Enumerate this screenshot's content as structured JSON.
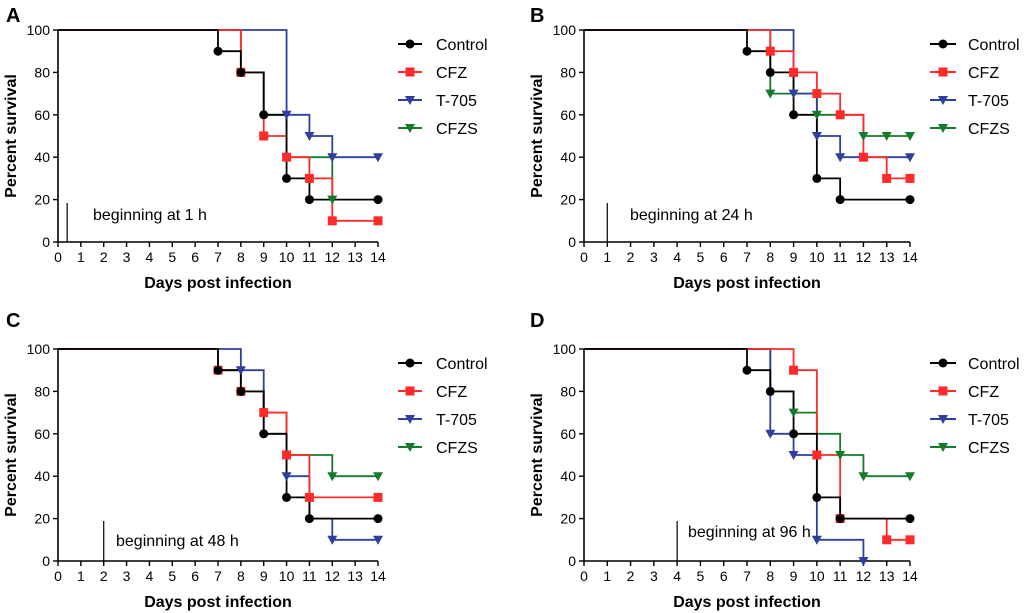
{
  "chart_data": [
    {
      "type": "line",
      "subtype": "survival-step",
      "panel": "A",
      "xlabel": "Days post infection",
      "ylabel": "Percent survival",
      "xlim": [
        0,
        14
      ],
      "ylim": [
        0,
        100
      ],
      "xticks": [
        0,
        1,
        2,
        3,
        4,
        5,
        6,
        7,
        8,
        9,
        10,
        11,
        12,
        13,
        14
      ],
      "yticks": [
        0,
        20,
        40,
        60,
        80,
        100
      ],
      "annotation": {
        "text": "beginning at 1 h",
        "x": 0.4
      },
      "legend_position": "right",
      "series": [
        {
          "name": "Control",
          "color": "#000000",
          "marker": "circle",
          "steps": [
            [
              0,
              100
            ],
            [
              7,
              90
            ],
            [
              8,
              80
            ],
            [
              9,
              60
            ],
            [
              10,
              30
            ],
            [
              11,
              20
            ],
            [
              14,
              20
            ]
          ],
          "points": [
            [
              7,
              90
            ],
            [
              8,
              80
            ],
            [
              9,
              60
            ],
            [
              10,
              30
            ],
            [
              11,
              20
            ],
            [
              14,
              20
            ]
          ]
        },
        {
          "name": "CFZ",
          "color": "#ff2a2a",
          "marker": "square",
          "steps": [
            [
              0,
              100
            ],
            [
              8,
              80
            ],
            [
              9,
              50
            ],
            [
              10,
              40
            ],
            [
              11,
              30
            ],
            [
              12,
              10
            ],
            [
              14,
              10
            ]
          ],
          "points": [
            [
              8,
              80
            ],
            [
              9,
              50
            ],
            [
              10,
              40
            ],
            [
              11,
              30
            ],
            [
              12,
              10
            ],
            [
              14,
              10
            ]
          ]
        },
        {
          "name": "T-705",
          "color": "#2e3f9e",
          "marker": "triangle-down",
          "steps": [
            [
              0,
              100
            ],
            [
              10,
              60
            ],
            [
              11,
              50
            ],
            [
              12,
              40
            ],
            [
              14,
              40
            ]
          ],
          "points": [
            [
              10,
              60
            ],
            [
              11,
              50
            ],
            [
              12,
              40
            ],
            [
              14,
              40
            ]
          ]
        },
        {
          "name": "CFZS",
          "color": "#157a2b",
          "marker": "triangle-down",
          "steps": [
            [
              0,
              100
            ],
            [
              8,
              80
            ],
            [
              9,
              60
            ],
            [
              10,
              40
            ],
            [
              12,
              20
            ]
          ],
          "points": [
            [
              12,
              20
            ]
          ]
        }
      ]
    },
    {
      "type": "line",
      "subtype": "survival-step",
      "panel": "B",
      "xlabel": "Days post infection",
      "ylabel": "Percent survival",
      "xlim": [
        0,
        14
      ],
      "ylim": [
        0,
        100
      ],
      "xticks": [
        0,
        1,
        2,
        3,
        4,
        5,
        6,
        7,
        8,
        9,
        10,
        11,
        12,
        13,
        14
      ],
      "yticks": [
        0,
        20,
        40,
        60,
        80,
        100
      ],
      "annotation": {
        "text": "beginning at 24 h",
        "x": 1
      },
      "legend_position": "right",
      "series": [
        {
          "name": "Control",
          "color": "#000000",
          "marker": "circle",
          "steps": [
            [
              0,
              100
            ],
            [
              7,
              90
            ],
            [
              8,
              80
            ],
            [
              9,
              60
            ],
            [
              10,
              30
            ],
            [
              11,
              20
            ],
            [
              14,
              20
            ]
          ],
          "points": [
            [
              7,
              90
            ],
            [
              8,
              80
            ],
            [
              9,
              60
            ],
            [
              10,
              30
            ],
            [
              11,
              20
            ],
            [
              14,
              20
            ]
          ]
        },
        {
          "name": "CFZ",
          "color": "#ff2a2a",
          "marker": "square",
          "steps": [
            [
              0,
              100
            ],
            [
              8,
              90
            ],
            [
              9,
              80
            ],
            [
              10,
              70
            ],
            [
              11,
              60
            ],
            [
              12,
              40
            ],
            [
              13,
              30
            ],
            [
              14,
              30
            ]
          ],
          "points": [
            [
              8,
              90
            ],
            [
              9,
              80
            ],
            [
              10,
              70
            ],
            [
              11,
              60
            ],
            [
              12,
              40
            ],
            [
              13,
              30
            ],
            [
              14,
              30
            ]
          ]
        },
        {
          "name": "T-705",
          "color": "#2e3f9e",
          "marker": "triangle-down",
          "steps": [
            [
              0,
              100
            ],
            [
              9,
              70
            ],
            [
              10,
              50
            ],
            [
              11,
              40
            ],
            [
              14,
              40
            ]
          ],
          "points": [
            [
              9,
              70
            ],
            [
              10,
              50
            ],
            [
              11,
              40
            ],
            [
              14,
              40
            ]
          ]
        },
        {
          "name": "CFZS",
          "color": "#157a2b",
          "marker": "triangle-down",
          "steps": [
            [
              0,
              100
            ],
            [
              8,
              70
            ],
            [
              10,
              60
            ],
            [
              12,
              50
            ],
            [
              14,
              50
            ]
          ],
          "points": [
            [
              8,
              70
            ],
            [
              10,
              60
            ],
            [
              12,
              50
            ],
            [
              13,
              50
            ],
            [
              14,
              50
            ]
          ]
        }
      ]
    },
    {
      "type": "line",
      "subtype": "survival-step",
      "panel": "C",
      "xlabel": "Days post infection",
      "ylabel": "Percent survival",
      "xlim": [
        0,
        14
      ],
      "ylim": [
        0,
        100
      ],
      "xticks": [
        0,
        1,
        2,
        3,
        4,
        5,
        6,
        7,
        8,
        9,
        10,
        11,
        12,
        13,
        14
      ],
      "yticks": [
        0,
        20,
        40,
        60,
        80,
        100
      ],
      "annotation": {
        "text": "beginning at 48 h",
        "x": 2
      },
      "legend_position": "right",
      "series": [
        {
          "name": "Control",
          "color": "#000000",
          "marker": "circle",
          "steps": [
            [
              0,
              100
            ],
            [
              7,
              90
            ],
            [
              8,
              80
            ],
            [
              9,
              60
            ],
            [
              10,
              30
            ],
            [
              11,
              20
            ],
            [
              14,
              20
            ]
          ],
          "points": [
            [
              7,
              90
            ],
            [
              8,
              80
            ],
            [
              9,
              60
            ],
            [
              10,
              30
            ],
            [
              11,
              20
            ],
            [
              14,
              20
            ]
          ]
        },
        {
          "name": "CFZ",
          "color": "#ff2a2a",
          "marker": "square",
          "steps": [
            [
              0,
              100
            ],
            [
              7,
              90
            ],
            [
              8,
              80
            ],
            [
              9,
              70
            ],
            [
              10,
              50
            ],
            [
              11,
              30
            ],
            [
              14,
              30
            ]
          ],
          "points": [
            [
              7,
              90
            ],
            [
              8,
              80
            ],
            [
              9,
              70
            ],
            [
              10,
              50
            ],
            [
              11,
              30
            ],
            [
              14,
              30
            ]
          ]
        },
        {
          "name": "T-705",
          "color": "#2e3f9e",
          "marker": "triangle-down",
          "steps": [
            [
              0,
              100
            ],
            [
              8,
              90
            ],
            [
              9,
              60
            ],
            [
              10,
              40
            ],
            [
              11,
              20
            ],
            [
              12,
              10
            ],
            [
              14,
              10
            ]
          ],
          "points": [
            [
              8,
              90
            ],
            [
              10,
              40
            ],
            [
              12,
              10
            ],
            [
              14,
              10
            ]
          ]
        },
        {
          "name": "CFZS",
          "color": "#157a2b",
          "marker": "triangle-down",
          "steps": [
            [
              0,
              100
            ],
            [
              7,
              90
            ],
            [
              8,
              80
            ],
            [
              9,
              70
            ],
            [
              10,
              50
            ],
            [
              12,
              40
            ],
            [
              14,
              40
            ]
          ],
          "points": [
            [
              12,
              40
            ],
            [
              14,
              40
            ]
          ]
        }
      ]
    },
    {
      "type": "line",
      "subtype": "survival-step",
      "panel": "D",
      "xlabel": "Days post infection",
      "ylabel": "Percent survival",
      "xlim": [
        0,
        14
      ],
      "ylim": [
        0,
        100
      ],
      "xticks": [
        0,
        1,
        2,
        3,
        4,
        5,
        6,
        7,
        8,
        9,
        10,
        11,
        12,
        13,
        14
      ],
      "yticks": [
        0,
        20,
        40,
        60,
        80,
        100
      ],
      "annotation": {
        "text": "beginning at 96 h",
        "x": 4
      },
      "legend_position": "right",
      "series": [
        {
          "name": "Control",
          "color": "#000000",
          "marker": "circle",
          "steps": [
            [
              0,
              100
            ],
            [
              7,
              90
            ],
            [
              8,
              80
            ],
            [
              9,
              60
            ],
            [
              10,
              30
            ],
            [
              11,
              20
            ],
            [
              14,
              20
            ]
          ],
          "points": [
            [
              7,
              90
            ],
            [
              8,
              80
            ],
            [
              9,
              60
            ],
            [
              10,
              30
            ],
            [
              11,
              20
            ],
            [
              14,
              20
            ]
          ]
        },
        {
          "name": "CFZ",
          "color": "#ff2a2a",
          "marker": "square",
          "steps": [
            [
              0,
              100
            ],
            [
              9,
              90
            ],
            [
              10,
              50
            ],
            [
              11,
              20
            ],
            [
              13,
              10
            ],
            [
              14,
              10
            ]
          ],
          "points": [
            [
              9,
              90
            ],
            [
              10,
              50
            ],
            [
              11,
              20
            ],
            [
              13,
              10
            ],
            [
              14,
              10
            ]
          ]
        },
        {
          "name": "T-705",
          "color": "#2e3f9e",
          "marker": "triangle-down",
          "steps": [
            [
              0,
              100
            ],
            [
              8,
              60
            ],
            [
              9,
              50
            ],
            [
              10,
              10
            ],
            [
              12,
              0
            ]
          ],
          "points": [
            [
              8,
              60
            ],
            [
              9,
              50
            ],
            [
              10,
              10
            ],
            [
              12,
              0
            ]
          ]
        },
        {
          "name": "CFZS",
          "color": "#157a2b",
          "marker": "triangle-down",
          "steps": [
            [
              0,
              100
            ],
            [
              8,
              80
            ],
            [
              9,
              70
            ],
            [
              10,
              60
            ],
            [
              11,
              50
            ],
            [
              12,
              40
            ],
            [
              14,
              40
            ]
          ],
          "points": [
            [
              9,
              70
            ],
            [
              11,
              50
            ],
            [
              12,
              40
            ],
            [
              14,
              40
            ]
          ]
        }
      ]
    }
  ]
}
